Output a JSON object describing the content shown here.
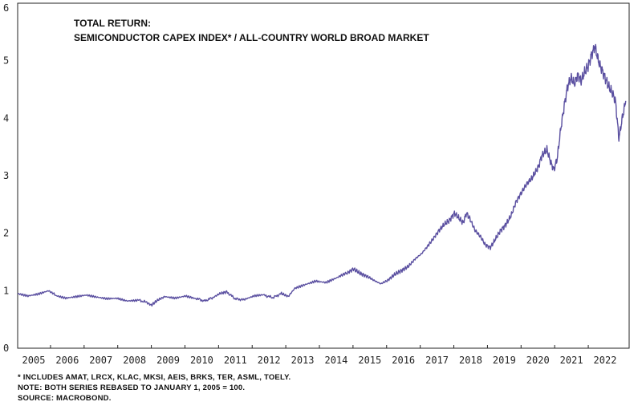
{
  "chart_data": {
    "type": "line",
    "title": "TOTAL RETURN:",
    "subtitle": "SEMICONDUCTOR CAPEX INDEX* / ALL-COUNTRY WORLD BROAD MARKET",
    "xlabel": "",
    "ylabel": "",
    "ylim": [
      0,
      6
    ],
    "yticks": [
      "0",
      "1",
      "2",
      "3",
      "4",
      "5",
      "6"
    ],
    "xlim": [
      2005.0,
      2022.85
    ],
    "xtick_labels": [
      "2005",
      "2006",
      "2007",
      "2008",
      "2009",
      "2010",
      "2011",
      "2012",
      "2013",
      "2014",
      "2015",
      "2016",
      "2017",
      "2018",
      "2019",
      "2020",
      "2021",
      "2022"
    ],
    "grid": false,
    "line_color": "#5a4fa0",
    "series": [
      {
        "name": "",
        "x": [
          2005.0,
          2005.3,
          2005.6,
          2005.9,
          2006.1,
          2006.4,
          2006.7,
          2007.0,
          2007.3,
          2007.6,
          2007.9,
          2008.2,
          2008.5,
          2008.75,
          2008.9,
          2009.1,
          2009.3,
          2009.6,
          2009.9,
          2010.2,
          2010.45,
          2010.7,
          2010.9,
          2011.1,
          2011.35,
          2011.6,
          2011.9,
          2012.2,
          2012.45,
          2012.7,
          2012.9,
          2013.1,
          2013.4,
          2013.7,
          2014.0,
          2014.3,
          2014.6,
          2014.8,
          2015.0,
          2015.2,
          2015.4,
          2015.6,
          2015.8,
          2016.0,
          2016.2,
          2016.4,
          2016.6,
          2016.8,
          2017.0,
          2017.15,
          2017.3,
          2017.45,
          2017.6,
          2017.75,
          2017.9,
          2018.0,
          2018.1,
          2018.2,
          2018.35,
          2018.5,
          2018.65,
          2018.8,
          2018.95,
          2019.1,
          2019.25,
          2019.4,
          2019.55,
          2019.7,
          2019.85,
          2020.0,
          2020.1,
          2020.2,
          2020.3,
          2020.45,
          2020.55,
          2020.65,
          2020.75,
          2020.85,
          2020.95,
          2021.05,
          2021.15,
          2021.25,
          2021.35,
          2021.45,
          2021.55,
          2021.65,
          2021.75,
          2021.85,
          2021.95,
          2022.05,
          2022.15,
          2022.25,
          2022.35,
          2022.45,
          2022.55,
          2022.65,
          2022.75
        ],
        "values": [
          0.96,
          0.92,
          0.95,
          1.0,
          0.93,
          0.88,
          0.9,
          0.92,
          0.88,
          0.85,
          0.86,
          0.82,
          0.84,
          0.8,
          0.75,
          0.84,
          0.9,
          0.88,
          0.92,
          0.87,
          0.82,
          0.88,
          0.95,
          0.98,
          0.86,
          0.84,
          0.9,
          0.92,
          0.88,
          0.95,
          0.9,
          1.05,
          1.12,
          1.18,
          1.15,
          1.22,
          1.3,
          1.38,
          1.3,
          1.25,
          1.18,
          1.12,
          1.18,
          1.28,
          1.35,
          1.42,
          1.55,
          1.65,
          1.8,
          1.92,
          2.05,
          2.15,
          2.22,
          2.35,
          2.25,
          2.18,
          2.35,
          2.25,
          2.05,
          1.95,
          1.8,
          1.75,
          1.9,
          2.05,
          2.15,
          2.3,
          2.55,
          2.7,
          2.85,
          2.95,
          3.05,
          3.15,
          3.35,
          3.45,
          3.25,
          3.1,
          3.3,
          3.8,
          4.2,
          4.55,
          4.7,
          4.6,
          4.75,
          4.65,
          4.8,
          4.9,
          5.1,
          5.25,
          5.0,
          4.85,
          4.7,
          4.55,
          4.45,
          4.3,
          3.65,
          4.0,
          4.3
        ]
      }
    ]
  },
  "notes": [
    "*  INCLUDES AMAT, LRCX, KLAC, MKSI, AEIS, BRKS, TER, ASML, TOELY.",
    "NOTE: BOTH SERIES REBASED TO JANUARY 1, 2005 = 100.",
    "SOURCE: MACROBOND."
  ]
}
